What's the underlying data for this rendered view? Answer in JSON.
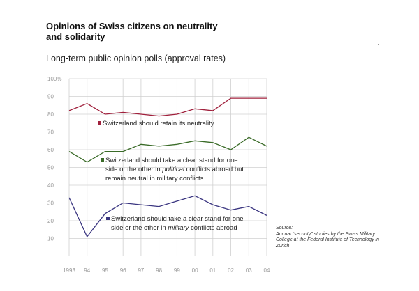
{
  "title": "Opinions of Swiss citizens on neutrality and solidarity",
  "subtitle": "Long-term public opinion polls (approval rates)",
  "source": {
    "title": "Source:",
    "text": "Annual “security” studies by the Swiss Military College at the Federal Institute of Technology in Zurich"
  },
  "chart_data": {
    "type": "line",
    "x": [
      "1993",
      "94",
      "95",
      "96",
      "97",
      "98",
      "99",
      "00",
      "01",
      "02",
      "03",
      "04"
    ],
    "ylim": [
      0,
      100
    ],
    "yticks": [
      "10",
      "20",
      "30",
      "40",
      "50",
      "60",
      "70",
      "80",
      "90",
      "100%"
    ],
    "ytick_values": [
      10,
      20,
      30,
      40,
      50,
      60,
      70,
      80,
      90,
      100
    ],
    "grid": true,
    "series": [
      {
        "name": "Switzerland should retain its neutrality",
        "label_lines": [
          "Switzerland should retain its neutrality"
        ],
        "color": "#a0203c",
        "values": [
          82,
          86,
          80,
          81,
          80,
          79,
          80,
          83,
          82,
          89,
          89,
          89
        ]
      },
      {
        "name": "Switzerland should take a clear stand for one side or the other in political conflicts abroad but remain neutral in military conflicts",
        "label_lines": [
          "Switzerland should take a clear stand for one",
          "side or the other in |political| conflicts abroad but",
          "remain neutral in military conflicts"
        ],
        "color": "#3a6b28",
        "values": [
          59,
          53,
          59,
          59,
          63,
          62,
          63,
          65,
          64,
          60,
          67,
          62
        ]
      },
      {
        "name": "Switzerland should take a clear stand for one side or the other in military conflicts abroad",
        "label_lines": [
          "Switzerland should take a clear stand for one",
          "side or the other in |military| conflicts abroad"
        ],
        "color": "#3a3580",
        "values": [
          33,
          11,
          24,
          30,
          29,
          28,
          31,
          34,
          29,
          26,
          28,
          23
        ]
      }
    ]
  }
}
